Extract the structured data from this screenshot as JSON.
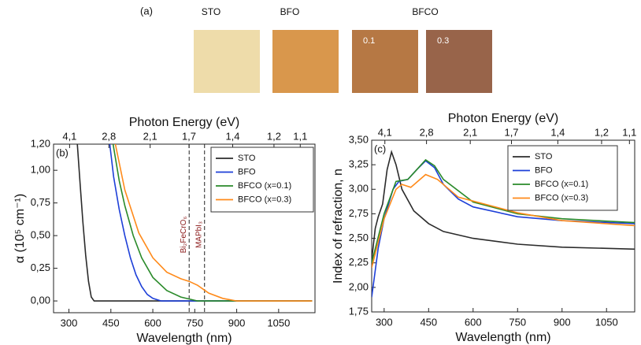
{
  "panel_a": {
    "label": "(a)",
    "group_label": "BFCO",
    "samples": [
      {
        "name": "STO",
        "color": "#eedcaa"
      },
      {
        "name": "BFO",
        "color": "#d9974c"
      },
      {
        "tag": "0.1",
        "color": "#b67844"
      },
      {
        "tag": "0.3",
        "color": "#98644a"
      }
    ]
  },
  "chart_data": [
    {
      "type": "line",
      "panel_label": "(b)",
      "xlabel": "Wavelength (nm)",
      "ylabel": "α (10⁵ cm⁻¹)",
      "x2label": "Photon Energy (eV)",
      "xlim": [
        245,
        1180
      ],
      "xticks": [
        300,
        450,
        600,
        750,
        900,
        1050
      ],
      "ylim": [
        -0.09,
        1.2
      ],
      "yticks": [
        {
          "value": 0,
          "label": "0,00"
        },
        {
          "value": 0.25,
          "label": "0,25"
        },
        {
          "value": 0.5,
          "label": "0,50"
        },
        {
          "value": 0.75,
          "label": "0,75"
        },
        {
          "value": 1.0,
          "label": "1,00"
        },
        {
          "value": 1.2,
          "label": "1,20"
        }
      ],
      "x2ticks": [
        {
          "value": 4.1,
          "label": "4,1"
        },
        {
          "value": 2.8,
          "label": "2,8"
        },
        {
          "value": 2.1,
          "label": "2,1"
        },
        {
          "value": 1.7,
          "label": "1,7"
        },
        {
          "value": 1.4,
          "label": "1,4"
        },
        {
          "value": 1.2,
          "label": "1,2"
        },
        {
          "value": 1.1,
          "label": "1,1"
        }
      ],
      "vlines": [
        {
          "x": 730,
          "label": "Bi₂FeCrO₆"
        },
        {
          "x": 785,
          "label": "MAPbI₃"
        }
      ],
      "series": [
        {
          "name": "STO",
          "color": "#2b2b2b",
          "x": [
            330,
            340,
            350,
            360,
            370,
            380,
            390,
            1170
          ],
          "values": [
            1.2,
            0.9,
            0.6,
            0.35,
            0.15,
            0.03,
            0,
            0
          ]
        },
        {
          "name": "BFO",
          "color": "#1d3fd8",
          "x": [
            446,
            460,
            480,
            500,
            520,
            540,
            560,
            580,
            600,
            630,
            1170
          ],
          "values": [
            1.2,
            0.95,
            0.7,
            0.5,
            0.33,
            0.2,
            0.11,
            0.05,
            0.02,
            0,
            0
          ]
        },
        {
          "name": "BFCO (x=0.1)",
          "color": "#2a8a2a",
          "x": [
            458,
            480,
            500,
            530,
            560,
            600,
            650,
            700,
            760,
            1170
          ],
          "values": [
            1.2,
            0.92,
            0.73,
            0.5,
            0.33,
            0.18,
            0.08,
            0.03,
            0,
            0
          ]
        },
        {
          "name": "BFCO (x=0.3)",
          "color": "#ff8a1a",
          "x": [
            466,
            500,
            550,
            600,
            650,
            700,
            730,
            760,
            800,
            850,
            900,
            1170
          ],
          "values": [
            1.2,
            0.85,
            0.52,
            0.33,
            0.22,
            0.17,
            0.15,
            0.12,
            0.06,
            0.02,
            0,
            0
          ]
        }
      ]
    },
    {
      "type": "line",
      "panel_label": "(c)",
      "xlabel": "Wavelength (nm)",
      "ylabel": "Index of refraction, n",
      "x2label": "Photon Energy (eV)",
      "xlim": [
        258,
        1145
      ],
      "xticks": [
        300,
        450,
        600,
        750,
        900,
        1050
      ],
      "ylim": [
        1.75,
        3.5
      ],
      "yticks": [
        {
          "value": 1.75,
          "label": "1,75"
        },
        {
          "value": 2.0,
          "label": "2,00"
        },
        {
          "value": 2.25,
          "label": "2,25"
        },
        {
          "value": 2.5,
          "label": "2,50"
        },
        {
          "value": 2.75,
          "label": "2,75"
        },
        {
          "value": 3.0,
          "label": "3,00"
        },
        {
          "value": 3.25,
          "label": "3,25"
        },
        {
          "value": 3.5,
          "label": "3,50"
        }
      ],
      "x2ticks": [
        {
          "value": 4.1,
          "label": "4,1"
        },
        {
          "value": 2.8,
          "label": "2,8"
        },
        {
          "value": 2.1,
          "label": "2,1"
        },
        {
          "value": 1.7,
          "label": "1,7"
        },
        {
          "value": 1.4,
          "label": "1,4"
        },
        {
          "value": 1.2,
          "label": "1,2"
        },
        {
          "value": 1.1,
          "label": "1,1"
        }
      ],
      "series": [
        {
          "name": "STO",
          "color": "#2b2b2b",
          "x": [
            258,
            270,
            280,
            295,
            310,
            325,
            340,
            360,
            400,
            450,
            500,
            600,
            750,
            900,
            1145
          ],
          "values": [
            2.28,
            2.6,
            2.72,
            2.85,
            3.2,
            3.38,
            3.25,
            3.0,
            2.78,
            2.65,
            2.57,
            2.5,
            2.44,
            2.41,
            2.39
          ]
        },
        {
          "name": "BFO",
          "color": "#1d3fd8",
          "x": [
            258,
            280,
            300,
            330,
            350,
            380,
            410,
            440,
            470,
            500,
            550,
            600,
            750,
            900,
            1145
          ],
          "values": [
            1.9,
            2.4,
            2.7,
            3.0,
            3.08,
            3.1,
            3.2,
            3.29,
            3.22,
            3.05,
            2.9,
            2.82,
            2.72,
            2.68,
            2.65
          ]
        },
        {
          "name": "BFCO (x=0.1)",
          "color": "#2a8a2a",
          "x": [
            258,
            300,
            340,
            380,
            410,
            440,
            470,
            500,
            600,
            750,
            900,
            1145
          ],
          "values": [
            2.25,
            2.75,
            3.08,
            3.1,
            3.2,
            3.3,
            3.24,
            3.1,
            2.87,
            2.75,
            2.7,
            2.66
          ]
        },
        {
          "name": "BFCO (x=0.3)",
          "color": "#ff8a1a",
          "x": [
            258,
            300,
            340,
            360,
            390,
            440,
            480,
            550,
            750,
            900,
            1145
          ],
          "values": [
            2.2,
            2.7,
            3.0,
            3.05,
            3.02,
            3.15,
            3.1,
            2.92,
            2.76,
            2.68,
            2.63
          ]
        }
      ]
    }
  ]
}
